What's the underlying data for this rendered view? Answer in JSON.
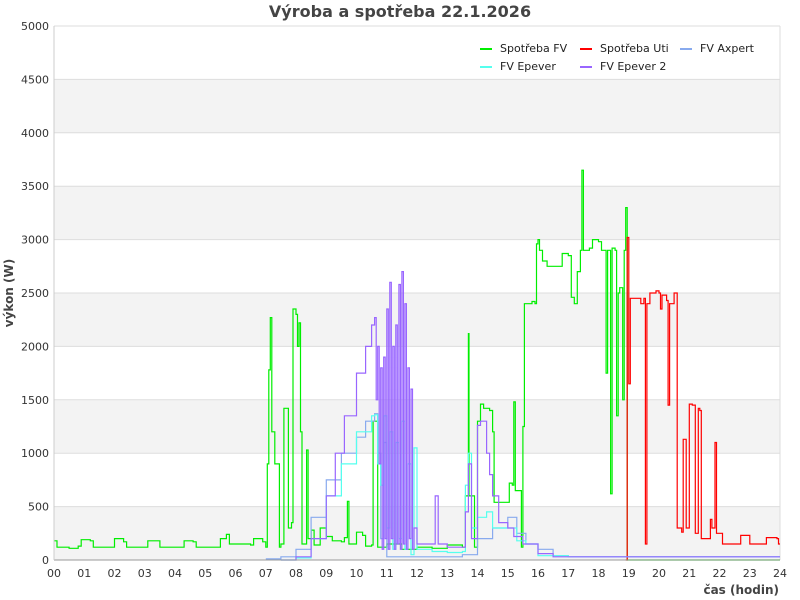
{
  "chart_data": {
    "type": "line",
    "title": "Výroba a spotřeba 22.1.2026",
    "xlabel": "čas (hodin)",
    "ylabel": "výkon (W)",
    "xlim": [
      0,
      24
    ],
    "ylim": [
      0,
      5000
    ],
    "x_ticks": [
      "00",
      "01",
      "02",
      "03",
      "04",
      "05",
      "06",
      "07",
      "08",
      "09",
      "10",
      "11",
      "12",
      "13",
      "14",
      "15",
      "16",
      "17",
      "18",
      "19",
      "20",
      "21",
      "22",
      "23",
      "24"
    ],
    "y_ticks": [
      "0",
      "500",
      "1000",
      "1500",
      "2000",
      "2500",
      "3000",
      "3500",
      "4000",
      "4500",
      "5000"
    ],
    "grid": true,
    "legend_position": "top-right",
    "series": [
      {
        "name": "Spotřeba FV",
        "color": "#00ee00",
        "points": [
          [
            0,
            180
          ],
          [
            0.1,
            120
          ],
          [
            0.5,
            110
          ],
          [
            0.8,
            130
          ],
          [
            0.9,
            190
          ],
          [
            1.2,
            180
          ],
          [
            1.3,
            120
          ],
          [
            1.9,
            120
          ],
          [
            2.0,
            200
          ],
          [
            2.3,
            170
          ],
          [
            2.4,
            120
          ],
          [
            3.0,
            120
          ],
          [
            3.1,
            180
          ],
          [
            3.4,
            180
          ],
          [
            3.5,
            120
          ],
          [
            4.2,
            120
          ],
          [
            4.3,
            180
          ],
          [
            4.6,
            170
          ],
          [
            4.7,
            120
          ],
          [
            5.4,
            120
          ],
          [
            5.5,
            200
          ],
          [
            5.7,
            240
          ],
          [
            5.8,
            150
          ],
          [
            6.5,
            140
          ],
          [
            6.6,
            200
          ],
          [
            6.9,
            170
          ],
          [
            7.0,
            120
          ],
          [
            7.05,
            900
          ],
          [
            7.1,
            1780
          ],
          [
            7.15,
            2270
          ],
          [
            7.2,
            1200
          ],
          [
            7.3,
            900
          ],
          [
            7.35,
            900
          ],
          [
            7.45,
            120
          ],
          [
            7.5,
            150
          ],
          [
            7.6,
            1420
          ],
          [
            7.7,
            1420
          ],
          [
            7.75,
            300
          ],
          [
            7.85,
            350
          ],
          [
            7.9,
            2350
          ],
          [
            8.0,
            2300
          ],
          [
            8.05,
            2000
          ],
          [
            8.1,
            2220
          ],
          [
            8.15,
            1200
          ],
          [
            8.2,
            150
          ],
          [
            8.35,
            1030
          ],
          [
            8.4,
            200
          ],
          [
            8.5,
            280
          ],
          [
            8.6,
            140
          ],
          [
            8.8,
            300
          ],
          [
            9.0,
            220
          ],
          [
            9.2,
            180
          ],
          [
            9.5,
            170
          ],
          [
            9.6,
            210
          ],
          [
            9.7,
            550
          ],
          [
            9.75,
            150
          ],
          [
            10.0,
            260
          ],
          [
            10.2,
            230
          ],
          [
            10.3,
            130
          ],
          [
            10.5,
            140
          ],
          [
            10.55,
            1300
          ],
          [
            10.65,
            1300
          ],
          [
            10.7,
            120
          ],
          [
            11.0,
            150
          ],
          [
            11.5,
            100
          ],
          [
            12.0,
            120
          ],
          [
            12.5,
            110
          ],
          [
            13.0,
            140
          ],
          [
            13.5,
            120
          ],
          [
            13.6,
            600
          ],
          [
            13.65,
            600
          ],
          [
            13.7,
            2120
          ],
          [
            13.72,
            600
          ],
          [
            13.8,
            600
          ],
          [
            13.9,
            120
          ],
          [
            14.0,
            1300
          ],
          [
            14.1,
            1460
          ],
          [
            14.2,
            1420
          ],
          [
            14.4,
            1400
          ],
          [
            14.5,
            1200
          ],
          [
            14.55,
            540
          ],
          [
            15.0,
            540
          ],
          [
            15.05,
            720
          ],
          [
            15.15,
            700
          ],
          [
            15.2,
            1480
          ],
          [
            15.25,
            650
          ],
          [
            15.4,
            650
          ],
          [
            15.45,
            120
          ],
          [
            15.5,
            1250
          ],
          [
            15.55,
            2400
          ],
          [
            15.8,
            2420
          ],
          [
            15.9,
            2400
          ],
          [
            15.95,
            2960
          ],
          [
            16.0,
            3000
          ],
          [
            16.05,
            2900
          ],
          [
            16.15,
            2800
          ],
          [
            16.3,
            2750
          ],
          [
            16.6,
            2750
          ],
          [
            16.75,
            2750
          ],
          [
            16.8,
            2870
          ],
          [
            17.0,
            2850
          ],
          [
            17.1,
            2460
          ],
          [
            17.2,
            2400
          ],
          [
            17.3,
            2700
          ],
          [
            17.4,
            2900
          ],
          [
            17.45,
            3650
          ],
          [
            17.5,
            2900
          ],
          [
            17.7,
            2920
          ],
          [
            17.8,
            3000
          ],
          [
            18.0,
            2980
          ],
          [
            18.1,
            2900
          ],
          [
            18.25,
            1750
          ],
          [
            18.3,
            2900
          ],
          [
            18.4,
            620
          ],
          [
            18.45,
            2920
          ],
          [
            18.55,
            2900
          ],
          [
            18.6,
            1350
          ],
          [
            18.65,
            2500
          ],
          [
            18.7,
            2550
          ],
          [
            18.8,
            1500
          ],
          [
            18.85,
            2900
          ],
          [
            18.9,
            3300
          ],
          [
            18.95,
            0
          ],
          [
            24,
            0
          ]
        ]
      },
      {
        "name": "Spotřeba Uti",
        "color": "#ff0000",
        "points": [
          [
            18.9,
            0
          ],
          [
            18.95,
            3020
          ],
          [
            19.0,
            1650
          ],
          [
            19.05,
            2450
          ],
          [
            19.3,
            2450
          ],
          [
            19.4,
            2400
          ],
          [
            19.5,
            2450
          ],
          [
            19.55,
            150
          ],
          [
            19.6,
            2400
          ],
          [
            19.7,
            2500
          ],
          [
            19.9,
            2520
          ],
          [
            20.0,
            2500
          ],
          [
            20.05,
            2350
          ],
          [
            20.1,
            2480
          ],
          [
            20.25,
            2430
          ],
          [
            20.3,
            1450
          ],
          [
            20.35,
            2400
          ],
          [
            20.5,
            2500
          ],
          [
            20.55,
            2500
          ],
          [
            20.6,
            300
          ],
          [
            20.75,
            260
          ],
          [
            20.8,
            1130
          ],
          [
            20.9,
            300
          ],
          [
            21.0,
            1460
          ],
          [
            21.1,
            1450
          ],
          [
            21.2,
            250
          ],
          [
            21.3,
            1420
          ],
          [
            21.35,
            1400
          ],
          [
            21.4,
            200
          ],
          [
            21.6,
            200
          ],
          [
            21.7,
            380
          ],
          [
            21.75,
            300
          ],
          [
            21.85,
            1100
          ],
          [
            21.9,
            250
          ],
          [
            22.0,
            250
          ],
          [
            22.1,
            150
          ],
          [
            22.6,
            150
          ],
          [
            22.7,
            230
          ],
          [
            22.9,
            230
          ],
          [
            23.0,
            150
          ],
          [
            23.5,
            150
          ],
          [
            23.55,
            210
          ],
          [
            23.9,
            200
          ],
          [
            23.95,
            150
          ],
          [
            24,
            150
          ]
        ]
      },
      {
        "name": "FV Axpert",
        "color": "#88aaee",
        "points": [
          [
            7.0,
            10
          ],
          [
            7.5,
            30
          ],
          [
            8.0,
            100
          ],
          [
            8.5,
            400
          ],
          [
            9.0,
            750
          ],
          [
            9.5,
            1000
          ],
          [
            10.0,
            1150
          ],
          [
            10.3,
            1300
          ],
          [
            10.6,
            1370
          ],
          [
            10.7,
            1000
          ],
          [
            10.8,
            200
          ],
          [
            10.9,
            1100
          ],
          [
            11.0,
            30
          ],
          [
            12.0,
            30
          ],
          [
            13.0,
            30
          ],
          [
            13.5,
            50
          ],
          [
            14.0,
            200
          ],
          [
            14.5,
            300
          ],
          [
            15.0,
            400
          ],
          [
            15.3,
            250
          ],
          [
            15.6,
            150
          ],
          [
            16.0,
            100
          ],
          [
            16.5,
            40
          ],
          [
            17.0,
            30
          ],
          [
            24,
            30
          ]
        ]
      },
      {
        "name": "FV Epever",
        "color": "#55ffee",
        "points": [
          [
            7.5,
            0
          ],
          [
            8.0,
            20
          ],
          [
            8.5,
            200
          ],
          [
            9.0,
            600
          ],
          [
            9.5,
            900
          ],
          [
            10.0,
            1200
          ],
          [
            10.5,
            1350
          ],
          [
            10.6,
            1360
          ],
          [
            10.7,
            900
          ],
          [
            10.8,
            700
          ],
          [
            10.9,
            1350
          ],
          [
            11.0,
            300
          ],
          [
            11.1,
            1200
          ],
          [
            11.2,
            100
          ],
          [
            11.3,
            1100
          ],
          [
            11.4,
            200
          ],
          [
            11.5,
            1300
          ],
          [
            11.6,
            100
          ],
          [
            11.7,
            900
          ],
          [
            11.8,
            50
          ],
          [
            11.9,
            1050
          ],
          [
            12.0,
            100
          ],
          [
            12.5,
            80
          ],
          [
            13.0,
            70
          ],
          [
            13.5,
            80
          ],
          [
            13.6,
            700
          ],
          [
            13.7,
            1000
          ],
          [
            13.8,
            300
          ],
          [
            14.0,
            400
          ],
          [
            14.3,
            450
          ],
          [
            14.5,
            300
          ],
          [
            15.0,
            300
          ],
          [
            15.3,
            180
          ],
          [
            15.6,
            150
          ],
          [
            16.0,
            40
          ],
          [
            17.0,
            30
          ],
          [
            24,
            30
          ]
        ]
      },
      {
        "name": "FV Epever 2",
        "color": "#9966ff",
        "points": [
          [
            7.5,
            0
          ],
          [
            8.0,
            30
          ],
          [
            8.5,
            200
          ],
          [
            9.0,
            600
          ],
          [
            9.3,
            1000
          ],
          [
            9.6,
            1350
          ],
          [
            10.0,
            1750
          ],
          [
            10.3,
            2000
          ],
          [
            10.5,
            2200
          ],
          [
            10.6,
            2270
          ],
          [
            10.65,
            1500
          ],
          [
            10.7,
            2000
          ],
          [
            10.75,
            900
          ],
          [
            10.8,
            1800
          ],
          [
            10.85,
            100
          ],
          [
            10.9,
            1900
          ],
          [
            10.95,
            200
          ],
          [
            11.0,
            2350
          ],
          [
            11.05,
            100
          ],
          [
            11.1,
            2600
          ],
          [
            11.15,
            200
          ],
          [
            11.2,
            2000
          ],
          [
            11.25,
            100
          ],
          [
            11.3,
            2200
          ],
          [
            11.35,
            150
          ],
          [
            11.4,
            2580
          ],
          [
            11.45,
            100
          ],
          [
            11.5,
            2700
          ],
          [
            11.55,
            150
          ],
          [
            11.6,
            2400
          ],
          [
            11.65,
            100
          ],
          [
            11.7,
            1800
          ],
          [
            11.75,
            200
          ],
          [
            11.8,
            1600
          ],
          [
            11.85,
            100
          ],
          [
            11.9,
            300
          ],
          [
            12.0,
            150
          ],
          [
            12.5,
            150
          ],
          [
            12.6,
            600
          ],
          [
            12.7,
            150
          ],
          [
            13.0,
            120
          ],
          [
            13.5,
            120
          ],
          [
            13.6,
            450
          ],
          [
            13.7,
            900
          ],
          [
            13.8,
            200
          ],
          [
            14.0,
            1260
          ],
          [
            14.1,
            1300
          ],
          [
            14.3,
            1000
          ],
          [
            14.4,
            800
          ],
          [
            14.5,
            600
          ],
          [
            14.7,
            350
          ],
          [
            15.0,
            300
          ],
          [
            15.2,
            220
          ],
          [
            15.5,
            150
          ],
          [
            16.0,
            60
          ],
          [
            16.5,
            30
          ],
          [
            24,
            30
          ]
        ]
      }
    ]
  }
}
